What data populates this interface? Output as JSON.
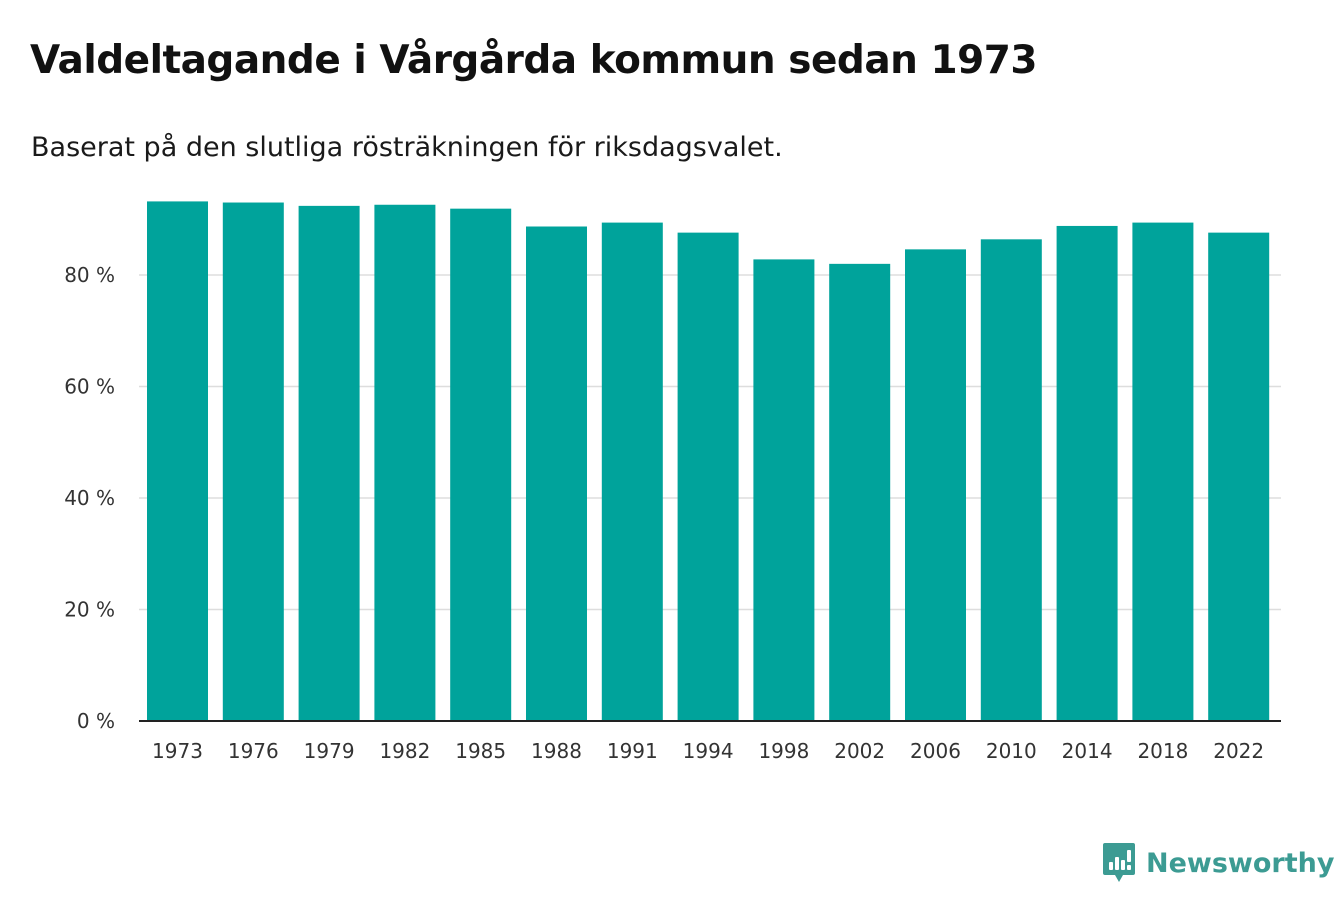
{
  "header": {
    "title": "Valdeltagande i Vårgårda kommun sedan 1973",
    "subtitle": "Baserat på den slutliga rösträkningen för riksdagsvalet."
  },
  "colors": {
    "bar": "#00a39b",
    "grid": "#dddddd",
    "axis": "#222222",
    "brand": "#3c9b93"
  },
  "chart_data": {
    "type": "bar",
    "title": "Valdeltagande i Vårgårda kommun sedan 1973",
    "subtitle": "Baserat på den slutliga rösträkningen för riksdagsvalet.",
    "xlabel": "",
    "ylabel": "",
    "categories": [
      "1973",
      "1976",
      "1979",
      "1982",
      "1985",
      "1988",
      "1991",
      "1994",
      "1998",
      "2002",
      "2006",
      "2010",
      "2014",
      "2018",
      "2022"
    ],
    "values": [
      93.2,
      93.0,
      92.4,
      92.6,
      91.9,
      88.7,
      89.4,
      87.6,
      82.8,
      82.0,
      84.6,
      86.4,
      88.8,
      89.4,
      87.6
    ],
    "ylim": [
      0,
      100
    ],
    "yticks": [
      0,
      20,
      40,
      60,
      80
    ],
    "ytick_labels": [
      "0 %",
      "20 %",
      "40 %",
      "60 %",
      "80 %"
    ],
    "grid": true,
    "legend": "none"
  },
  "footer": {
    "brand_name": "Newsworthy",
    "brand_icon": "newsworthy-logo-icon"
  }
}
